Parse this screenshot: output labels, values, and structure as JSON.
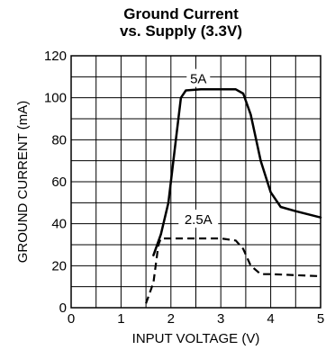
{
  "chart_data": {
    "type": "line",
    "title": [
      "Ground Current",
      "vs. Supply (3.3V)"
    ],
    "xlabel": "INPUT VOLTAGE (V)",
    "ylabel": "GROUND CURRENT (mA)",
    "xlim": [
      0,
      5
    ],
    "ylim": [
      0,
      120
    ],
    "x_ticks": [
      0,
      1,
      2,
      3,
      4,
      5
    ],
    "y_ticks": [
      0,
      20,
      40,
      60,
      80,
      100,
      120
    ],
    "x_tick_labels": [
      "0",
      "1",
      "2",
      "3",
      "4",
      "5"
    ],
    "y_tick_labels": [
      "0",
      "20",
      "40",
      "60",
      "80",
      "100",
      "120"
    ],
    "grid": true,
    "grid_x_step": 0.5,
    "grid_y_step": 10,
    "series": [
      {
        "name": "5A",
        "style": "solid",
        "points": [
          [
            1.65,
            25
          ],
          [
            1.8,
            35
          ],
          [
            1.95,
            50
          ],
          [
            2.1,
            80
          ],
          [
            2.2,
            100
          ],
          [
            2.3,
            103.5
          ],
          [
            2.6,
            104
          ],
          [
            3.0,
            104
          ],
          [
            3.3,
            104
          ],
          [
            3.45,
            102
          ],
          [
            3.6,
            92
          ],
          [
            3.8,
            70
          ],
          [
            4.0,
            55
          ],
          [
            4.2,
            48
          ],
          [
            4.5,
            46
          ],
          [
            5.0,
            43
          ]
        ]
      },
      {
        "name": "2.5A",
        "style": "dashed",
        "points": [
          [
            1.5,
            2
          ],
          [
            1.65,
            12
          ],
          [
            1.75,
            30
          ],
          [
            1.8,
            33
          ],
          [
            2.0,
            33
          ],
          [
            2.5,
            33
          ],
          [
            3.0,
            33
          ],
          [
            3.3,
            32
          ],
          [
            3.45,
            28
          ],
          [
            3.6,
            20
          ],
          [
            3.8,
            16
          ],
          [
            4.0,
            16
          ],
          [
            4.5,
            15.5
          ],
          [
            5.0,
            15
          ]
        ]
      }
    ],
    "annotations": [
      {
        "text": "5A",
        "x": 2.55,
        "y": 109
      },
      {
        "text": "2.5A",
        "x": 2.55,
        "y": 42
      }
    ]
  }
}
